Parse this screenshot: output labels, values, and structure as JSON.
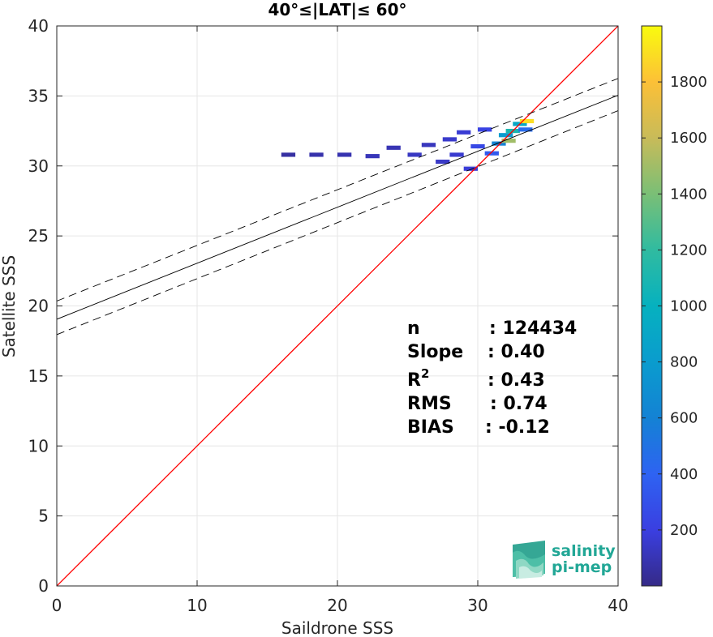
{
  "chart_data": {
    "type": "heatmap",
    "title": "40°≤|LAT|≤ 60°",
    "xlabel": "Saildrone SSS",
    "ylabel": "Satellite SSS",
    "xlim": [
      0,
      40
    ],
    "ylim": [
      0,
      40
    ],
    "x_ticks": [
      "0",
      "10",
      "20",
      "30",
      "40"
    ],
    "y_ticks": [
      "0",
      "5",
      "10",
      "15",
      "20",
      "25",
      "30",
      "35",
      "40"
    ],
    "grid": true,
    "colorbar": {
      "colormap": "parula",
      "min": 0,
      "max": 2000,
      "ticks": [
        "200",
        "400",
        "600",
        "800",
        "1000",
        "1200",
        "1400",
        "1600",
        "1800"
      ]
    },
    "density_cells": [
      {
        "x": 16.5,
        "y": 30.8,
        "count": 60
      },
      {
        "x": 18.5,
        "y": 30.8,
        "count": 80
      },
      {
        "x": 20.5,
        "y": 30.8,
        "count": 90
      },
      {
        "x": 22.5,
        "y": 30.7,
        "count": 110
      },
      {
        "x": 24.0,
        "y": 31.3,
        "count": 100
      },
      {
        "x": 25.5,
        "y": 30.8,
        "count": 130
      },
      {
        "x": 26.5,
        "y": 31.5,
        "count": 120
      },
      {
        "x": 27.5,
        "y": 30.3,
        "count": 140
      },
      {
        "x": 28.0,
        "y": 31.9,
        "count": 150
      },
      {
        "x": 28.5,
        "y": 30.8,
        "count": 160
      },
      {
        "x": 29.0,
        "y": 32.4,
        "count": 170
      },
      {
        "x": 29.5,
        "y": 29.8,
        "count": 180
      },
      {
        "x": 30.0,
        "y": 31.4,
        "count": 250
      },
      {
        "x": 30.5,
        "y": 32.6,
        "count": 220
      },
      {
        "x": 31.0,
        "y": 30.9,
        "count": 350
      },
      {
        "x": 31.5,
        "y": 31.6,
        "count": 600
      },
      {
        "x": 32.0,
        "y": 32.2,
        "count": 800
      },
      {
        "x": 32.2,
        "y": 31.8,
        "count": 1500
      },
      {
        "x": 32.5,
        "y": 32.5,
        "count": 1100
      },
      {
        "x": 33.0,
        "y": 33.0,
        "count": 900
      },
      {
        "x": 33.4,
        "y": 32.6,
        "count": 450
      },
      {
        "x": 33.5,
        "y": 33.2,
        "count": 1900
      }
    ],
    "lines": [
      {
        "name": "one-to-one",
        "color": "#ff0000",
        "x": [
          0,
          40
        ],
        "y": [
          0,
          40
        ]
      },
      {
        "name": "regression-fit",
        "color": "#000000",
        "dash": "solid",
        "x": [
          0,
          40
        ],
        "y": [
          19.05,
          35.05
        ]
      },
      {
        "name": "upper-bound",
        "color": "#000000",
        "dash": "dashed",
        "x": [
          0,
          40
        ],
        "y": [
          20.35,
          36.25
        ]
      },
      {
        "name": "lower-bound",
        "color": "#000000",
        "dash": "dashed",
        "x": [
          0,
          40
        ],
        "y": [
          17.95,
          33.95
        ]
      }
    ],
    "stats": [
      {
        "key": "n",
        "sup": "",
        "value": ": 124434"
      },
      {
        "key": "Slope",
        "sup": "",
        "value": ": 0.40"
      },
      {
        "key": "R",
        "sup": "2",
        "value": ": 0.43"
      },
      {
        "key": "RMS",
        "sup": "",
        "value": ": 0.74"
      },
      {
        "key": "BIAS",
        "sup": "",
        "value": ": -0.12"
      }
    ]
  },
  "logo": {
    "line1": "salinity",
    "line2": "pi-mep"
  }
}
